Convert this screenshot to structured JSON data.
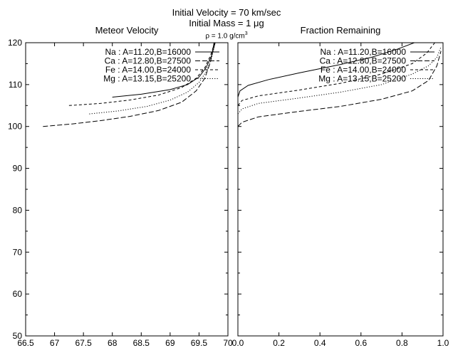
{
  "header": {
    "line1": "Initial Velocity = 70 km/sec",
    "line2": "Initial Mass = 1 μg",
    "line3": "ρ = 1.0 g/cm",
    "line3_sup": "3"
  },
  "chart_data": [
    {
      "type": "line",
      "title": "Meteor Velocity",
      "xlabel": "",
      "ylabel": "",
      "xlim": [
        66.5,
        70
      ],
      "ylim": [
        50,
        120
      ],
      "xticks": [
        "66.5",
        "67",
        "67.5",
        "68",
        "68.5",
        "69",
        "69.5",
        "70"
      ],
      "yticks": [
        "50",
        "60",
        "70",
        "80",
        "90",
        "100",
        "110",
        "120"
      ],
      "legend_position": "top-right",
      "series": [
        {
          "name": "Na : A=11.20,B=16000",
          "dash": "solid",
          "x": [
            68.0,
            68.5,
            69.0,
            69.3,
            69.5,
            69.62,
            69.72,
            69.78
          ],
          "y": [
            107.0,
            107.7,
            108.8,
            110.0,
            111.8,
            114.0,
            117.0,
            120.0
          ]
        },
        {
          "name": "Ca : A=12.80,B=27500",
          "dash": "long",
          "x": [
            66.8,
            67.3,
            67.8,
            68.3,
            68.8,
            69.2,
            69.45,
            69.6,
            69.7,
            69.76
          ],
          "y": [
            100.0,
            100.6,
            101.4,
            102.4,
            103.8,
            105.8,
            108.5,
            111.5,
            115.5,
            120.0
          ]
        },
        {
          "name": "Fe : A=14.00,B=24000",
          "dash": "short",
          "x": [
            67.25,
            67.8,
            68.3,
            68.8,
            69.2,
            69.45,
            69.6,
            69.7,
            69.77
          ],
          "y": [
            105.0,
            105.5,
            106.3,
            107.5,
            109.3,
            111.5,
            114.0,
            117.0,
            120.0
          ]
        },
        {
          "name": "Mg : A=13.15,B=25200",
          "dash": "dotted",
          "x": [
            67.6,
            68.1,
            68.6,
            69.0,
            69.3,
            69.5,
            69.63,
            69.72,
            69.78
          ],
          "y": [
            103.0,
            103.7,
            104.8,
            106.3,
            108.2,
            110.5,
            113.2,
            116.5,
            120.0
          ]
        }
      ]
    },
    {
      "type": "line",
      "title": "Fraction Remaining",
      "xlabel": "",
      "ylabel": "",
      "xlim": [
        0.0,
        1.0
      ],
      "ylim": [
        50,
        120
      ],
      "xticks": [
        "0.0",
        "0.2",
        "0.4",
        "0.6",
        "0.8",
        "1.0"
      ],
      "yticks": [],
      "legend_position": "top-right",
      "series": [
        {
          "name": "Na : A=11.20,B=16000",
          "dash": "solid",
          "x": [
            0.0,
            0.01,
            0.05,
            0.15,
            0.3,
            0.5,
            0.65,
            0.78,
            0.86
          ],
          "y": [
            107.0,
            108.5,
            109.8,
            111.2,
            112.8,
            114.8,
            116.5,
            118.5,
            120.0
          ]
        },
        {
          "name": "Ca : A=12.80,B=27500",
          "dash": "long",
          "x": [
            0.0,
            0.02,
            0.1,
            0.3,
            0.5,
            0.7,
            0.85,
            0.93,
            0.97,
            0.99
          ],
          "y": [
            100.0,
            101.0,
            102.3,
            103.6,
            104.8,
            106.5,
            108.5,
            111.0,
            114.5,
            118.0
          ]
        },
        {
          "name": "Fe : A=14.00,B=24000",
          "dash": "short",
          "x": [
            0.0,
            0.02,
            0.1,
            0.3,
            0.5,
            0.7,
            0.85,
            0.92,
            0.96
          ],
          "y": [
            105.0,
            106.2,
            107.3,
            108.7,
            110.3,
            112.5,
            115.0,
            117.5,
            120.0
          ]
        },
        {
          "name": "Mg : A=13.15,B=25200",
          "dash": "dotted",
          "x": [
            0.0,
            0.02,
            0.1,
            0.3,
            0.5,
            0.7,
            0.85,
            0.93,
            0.97,
            0.99
          ],
          "y": [
            103.0,
            104.2,
            105.5,
            106.8,
            108.2,
            110.0,
            112.5,
            114.5,
            116.5,
            119.0
          ]
        }
      ]
    }
  ]
}
